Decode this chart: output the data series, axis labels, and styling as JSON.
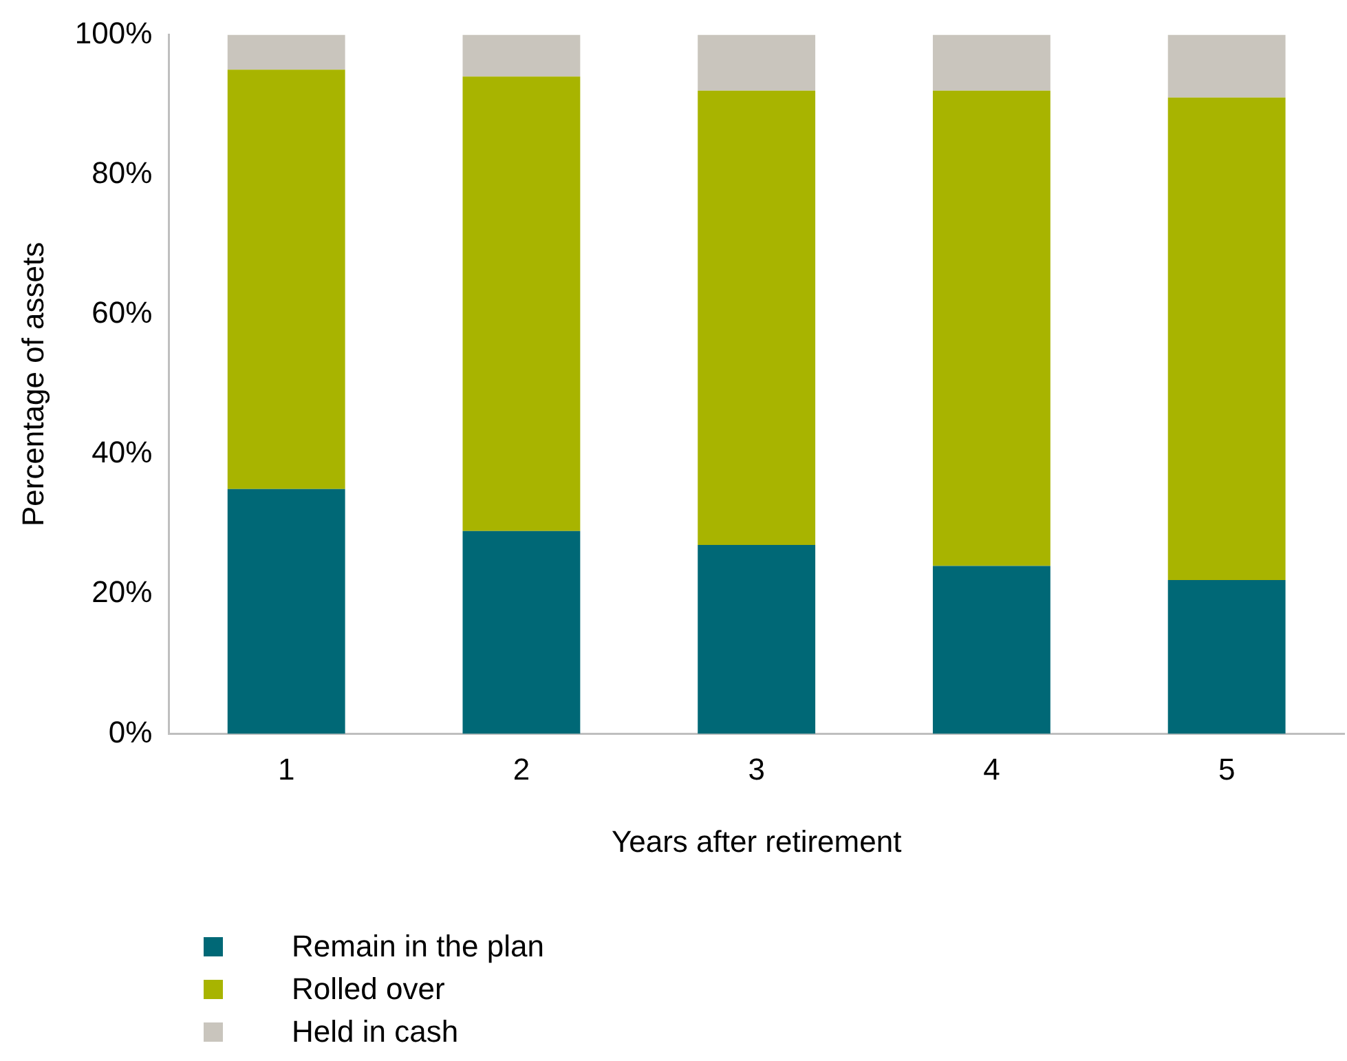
{
  "chart_data": {
    "type": "bar",
    "stacked": true,
    "xlabel": "Years after retirement",
    "ylabel": "Percentage of assets",
    "categories": [
      "1",
      "2",
      "3",
      "4",
      "5"
    ],
    "series": [
      {
        "name": "Remain in the plan",
        "color": "#006876",
        "values": [
          35,
          29,
          27,
          24,
          22
        ]
      },
      {
        "name": "Rolled over",
        "color": "#a8b400",
        "values": [
          60,
          65,
          65,
          68,
          69
        ]
      },
      {
        "name": "Held in cash",
        "color": "#c9c5bd",
        "values": [
          5,
          6,
          8,
          8,
          9
        ]
      }
    ],
    "ylim": [
      0,
      100
    ],
    "yticks": [
      {
        "value": 0,
        "label": "0%"
      },
      {
        "value": 20,
        "label": "20%"
      },
      {
        "value": 40,
        "label": "40%"
      },
      {
        "value": 60,
        "label": "60%"
      },
      {
        "value": 80,
        "label": "80%"
      },
      {
        "value": 100,
        "label": "100%"
      }
    ],
    "grid": false,
    "legend": "bottom"
  }
}
